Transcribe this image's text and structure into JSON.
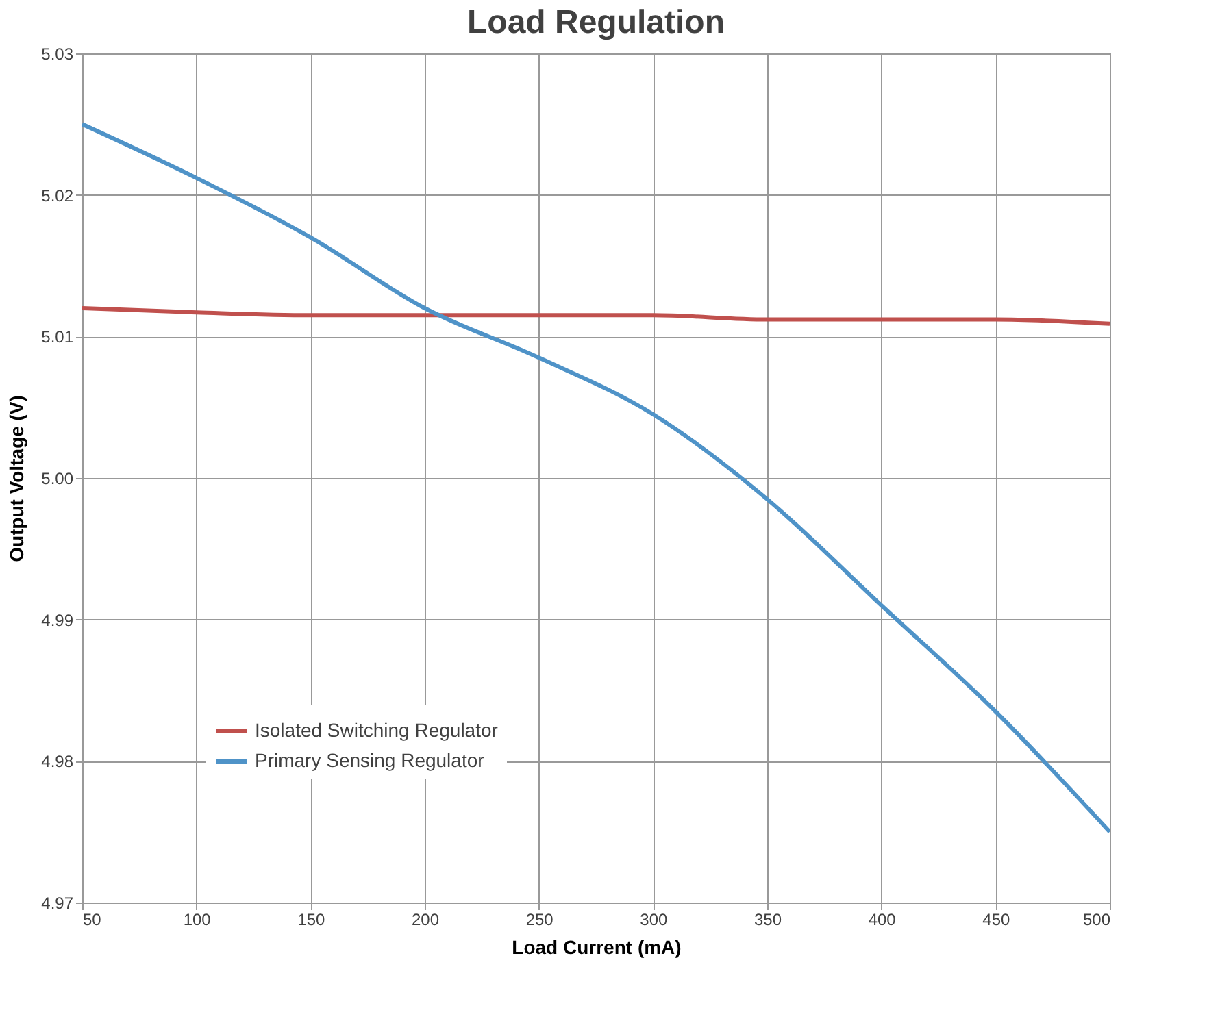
{
  "chart_data": {
    "type": "line",
    "title": "Load Regulation",
    "xlabel": "Load Current (mA)",
    "ylabel": "Output Voltage (V)",
    "x": [
      50,
      100,
      150,
      200,
      250,
      300,
      350,
      400,
      450,
      500
    ],
    "series": [
      {
        "name": "Isolated Switching Regulator",
        "color": "#c0504d",
        "values": [
          5.012,
          5.0117,
          5.0115,
          5.0115,
          5.0115,
          5.0115,
          5.0112,
          5.0112,
          5.0112,
          5.0109
        ]
      },
      {
        "name": "Primary Sensing Regulator",
        "color": "#4f93c8",
        "values": [
          5.025,
          5.0212,
          5.017,
          5.012,
          5.0085,
          5.0045,
          4.9985,
          4.991,
          4.9835,
          4.975
        ]
      }
    ],
    "xlim": [
      50,
      500
    ],
    "xticks": [
      50,
      100,
      150,
      200,
      250,
      300,
      350,
      400,
      450,
      500
    ],
    "ylim": [
      4.97,
      5.03
    ],
    "yticks": [
      4.97,
      4.98,
      4.99,
      {
        "value": 5.0,
        "label": "5.00"
      },
      5.01,
      5.02,
      5.03
    ],
    "grid": true,
    "legend": "bottom left",
    "marker": "none",
    "line_style": "solid"
  }
}
